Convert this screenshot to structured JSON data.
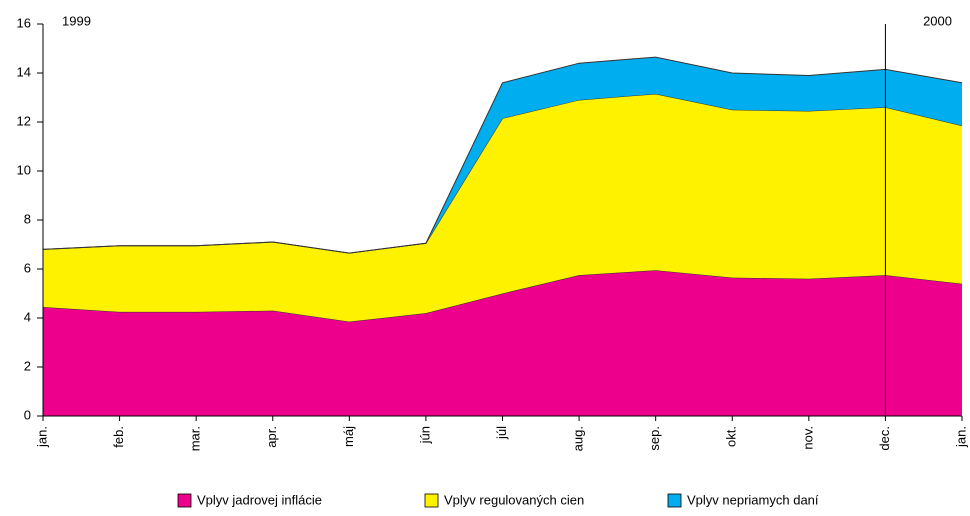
{
  "chart_data": {
    "type": "stacked_area",
    "categories": [
      "jan.",
      "feb.",
      "mar.",
      "apr.",
      "máj",
      "jún",
      "júl",
      "aug.",
      "sep.",
      "okt.",
      "nov.",
      "dec.",
      "jan."
    ],
    "series": [
      {
        "name": "Vplyv jadrovej inflácie",
        "color": "#ec008c",
        "values": [
          4.45,
          4.25,
          4.25,
          4.3,
          3.85,
          4.2,
          5.0,
          5.75,
          5.95,
          5.65,
          5.6,
          5.75,
          5.4
        ]
      },
      {
        "name": "Vplyv regulovaných cien",
        "color": "#fff200",
        "values": [
          2.35,
          2.7,
          2.7,
          2.8,
          2.8,
          2.85,
          7.15,
          7.15,
          7.2,
          6.85,
          6.85,
          6.85,
          6.45
        ]
      },
      {
        "name": "Vplyv nepriamych daní",
        "color": "#00aeef",
        "values": [
          0,
          0,
          0,
          0,
          0,
          0,
          1.45,
          1.5,
          1.5,
          1.5,
          1.45,
          1.55,
          1.75
        ]
      }
    ],
    "ylim": [
      0,
      16
    ],
    "yticks": [
      0,
      2,
      4,
      6,
      8,
      10,
      12,
      14,
      16
    ],
    "annotations": [
      "1999",
      "2000"
    ]
  }
}
